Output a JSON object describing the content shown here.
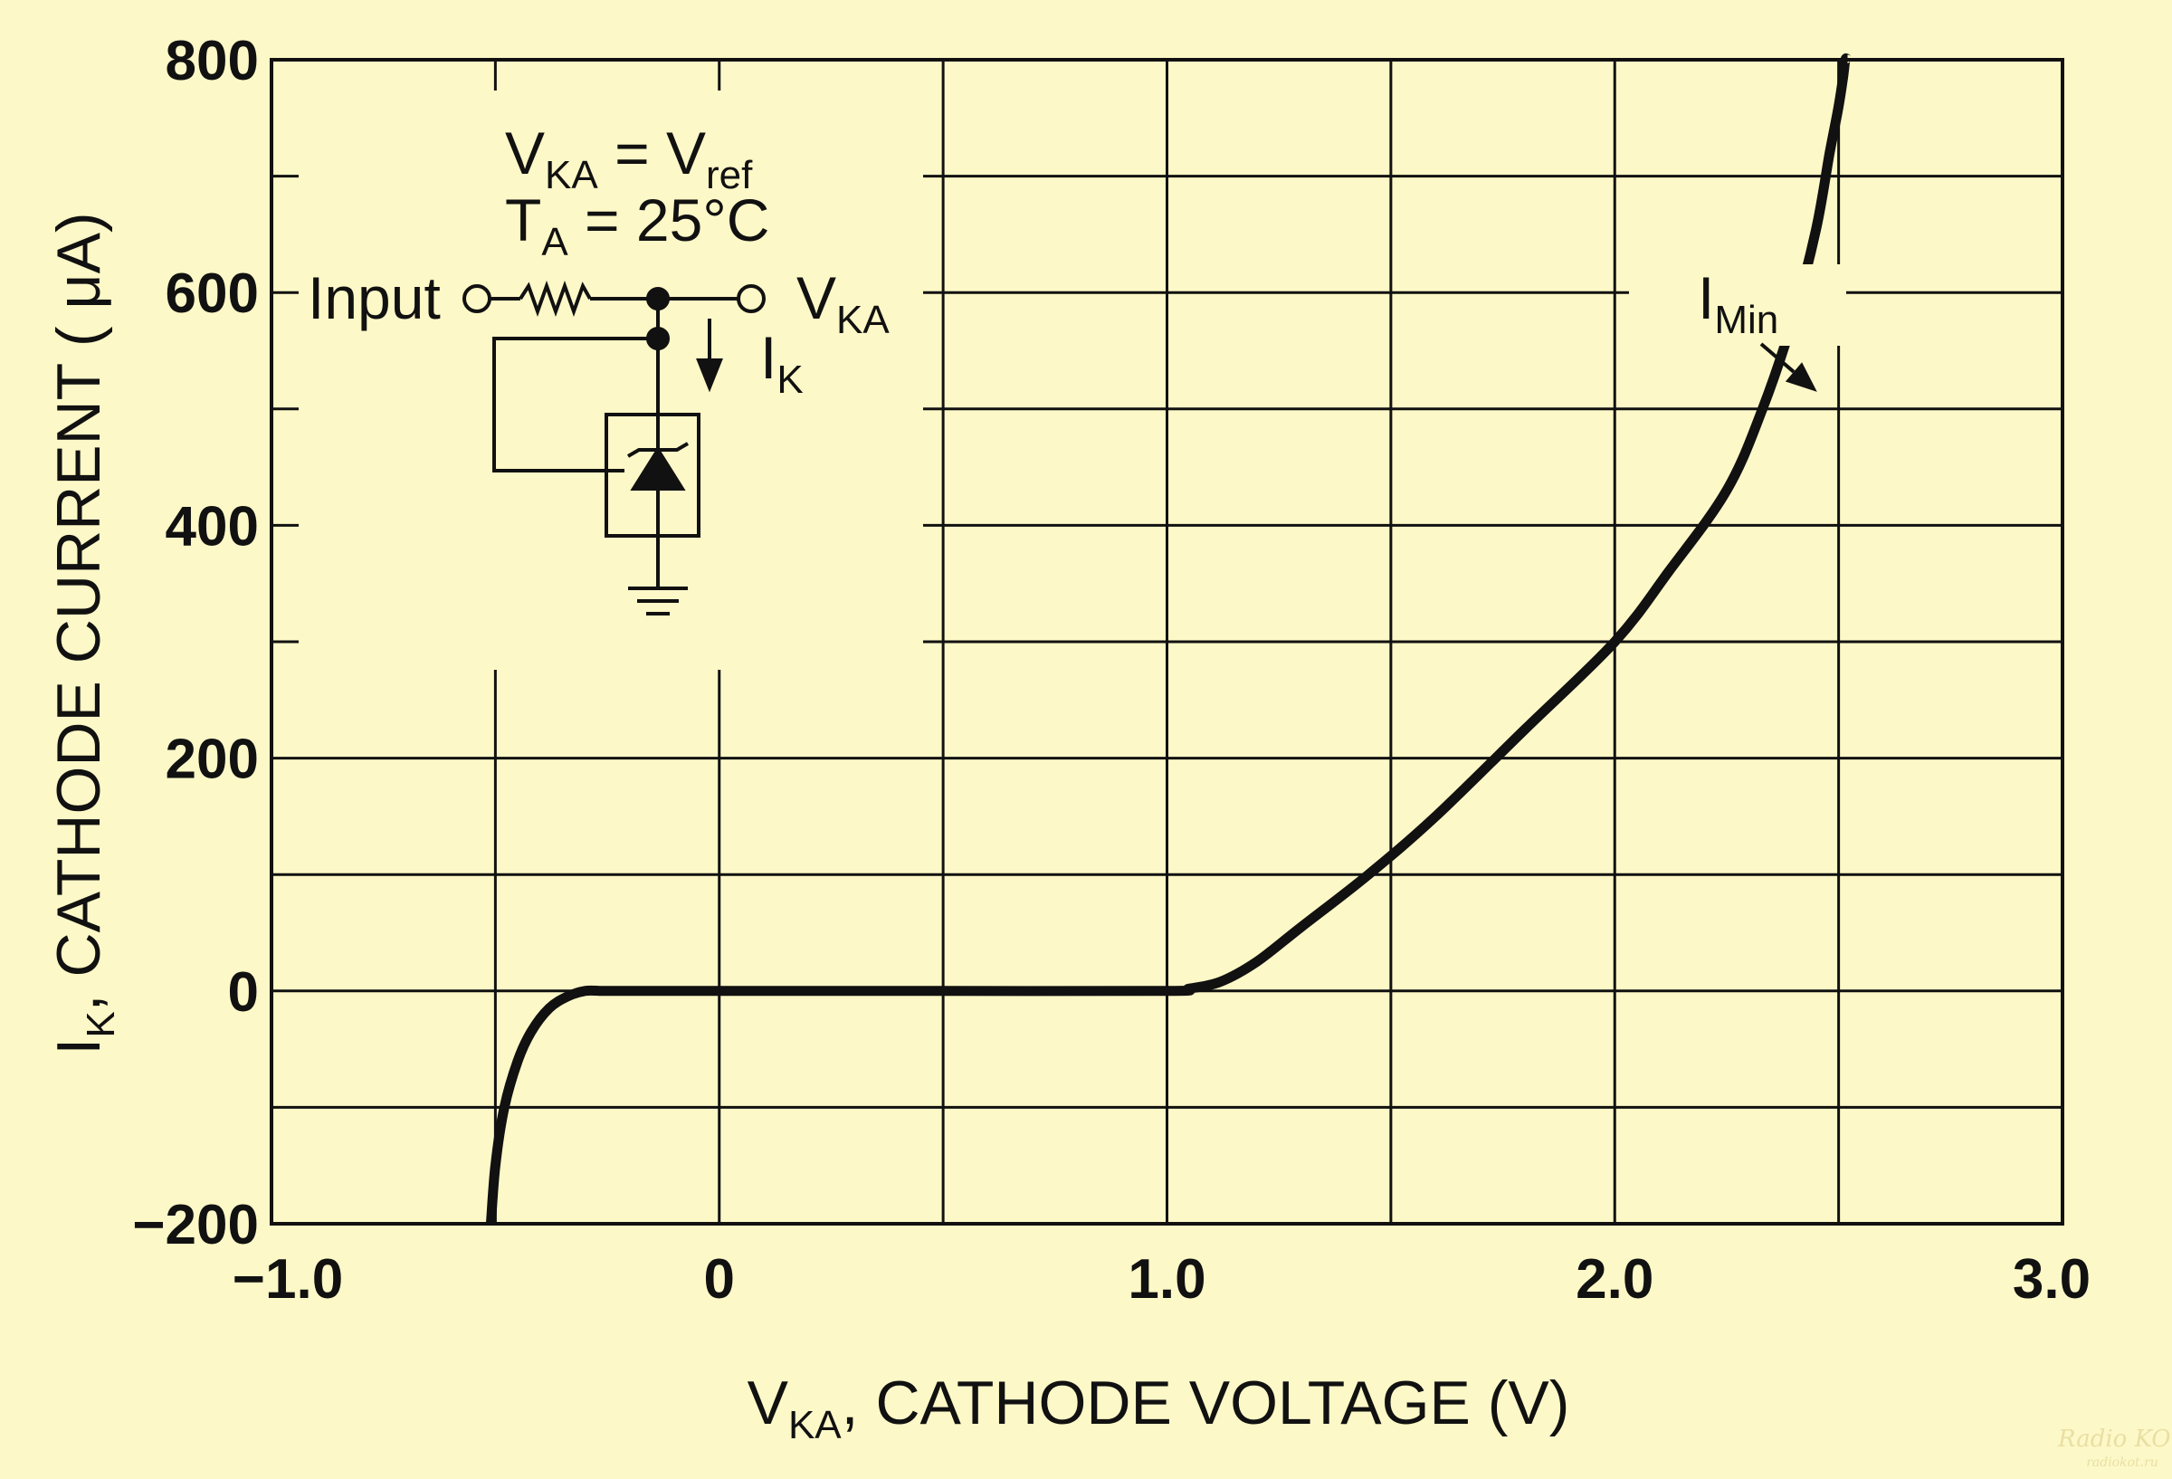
{
  "chart_data": {
    "type": "line",
    "background": "#fdf8c7",
    "grid": true,
    "xlim": [
      -1.0,
      3.0
    ],
    "ylim": [
      -200,
      800
    ],
    "x_ticks": [
      -1.0,
      0,
      1.0,
      2.0,
      3.0
    ],
    "x_tick_labels": [
      "−1.0",
      "0",
      "1.0",
      "2.0",
      "3.0"
    ],
    "x_minor_grid_step": 0.5,
    "y_ticks": [
      -200,
      0,
      200,
      400,
      600,
      800
    ],
    "y_tick_labels": [
      "−200",
      "0",
      "200",
      "400",
      "600",
      "800"
    ],
    "y_minor_grid_step": 100,
    "xlabel": {
      "main": "V",
      "sub": "KA",
      "rest": ", CATHODE VOLTAGE (V)"
    },
    "ylabel": {
      "main": "I",
      "sub": "K",
      "rest": ", CATHODE CURRENT ( μA)"
    },
    "series": [
      {
        "x": [
          -0.51,
          -0.5,
          -0.48,
          -0.45,
          -0.42,
          -0.38,
          -0.34,
          -0.3,
          -0.26,
          -0.2,
          0.0,
          0.5,
          1.0,
          1.05,
          1.12,
          1.2,
          1.3,
          1.45,
          1.6,
          1.8,
          2.0,
          2.12,
          2.25,
          2.33,
          2.4,
          2.45,
          2.48,
          2.5,
          2.51,
          2.515,
          2.52
        ],
        "y": [
          -200,
          -150,
          -100,
          -60,
          -35,
          -15,
          -5,
          0,
          0,
          0,
          0,
          0,
          0,
          2,
          8,
          25,
          55,
          100,
          150,
          225,
          300,
          360,
          430,
          500,
          580,
          655,
          720,
          760,
          785,
          800,
          800
        ]
      }
    ],
    "annotations": {
      "imin": {
        "main": "I",
        "sub": "Min",
        "x": 2.46,
        "y": 510
      },
      "conditions": [
        {
          "main": "V",
          "sub": "KA",
          "rest": " = V",
          "sub2": "ref"
        },
        {
          "main": "T",
          "sub": "A",
          "rest": " = 25°C"
        }
      ],
      "circuit": {
        "input_label": "Input",
        "output_label": {
          "main": "V",
          "sub": "KA"
        },
        "current_label": {
          "main": "I",
          "sub": "K"
        }
      }
    },
    "watermark": {
      "line1": "Radio KOT",
      "line2": "radiokot.ru"
    }
  }
}
